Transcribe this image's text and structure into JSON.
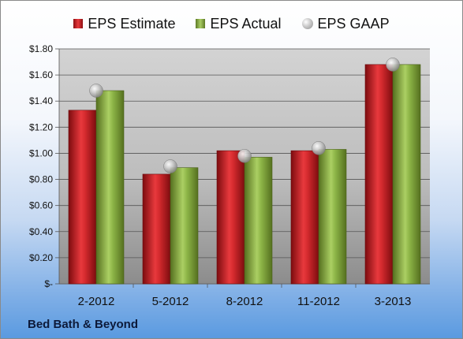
{
  "chart_data": {
    "type": "bar",
    "categories": [
      "2-2012",
      "5-2012",
      "8-2012",
      "11-2012",
      "3-2013"
    ],
    "series": [
      {
        "name": "EPS Estimate",
        "kind": "bar",
        "color": "#d42a2e",
        "values": [
          1.33,
          0.84,
          1.02,
          1.02,
          1.68
        ]
      },
      {
        "name": "EPS Actual",
        "kind": "bar",
        "color": "#8db547",
        "values": [
          1.48,
          0.89,
          0.97,
          1.03,
          1.68
        ]
      },
      {
        "name": "EPS GAAP",
        "kind": "marker",
        "color": "#b8b8b8",
        "values": [
          1.48,
          0.9,
          0.98,
          1.04,
          1.68
        ]
      }
    ],
    "ylim": [
      0,
      1.8
    ],
    "yticks": [
      0,
      0.2,
      0.4,
      0.6,
      0.8,
      1.0,
      1.2,
      1.4,
      1.6,
      1.8
    ],
    "ytick_labels": [
      "$-",
      "$0.20",
      "$0.40",
      "$0.60",
      "$0.80",
      "$1.00",
      "$1.20",
      "$1.40",
      "$1.60",
      "$1.80"
    ],
    "grid": true,
    "legend_position": "top"
  },
  "brand": "Bed Bath & Beyond"
}
